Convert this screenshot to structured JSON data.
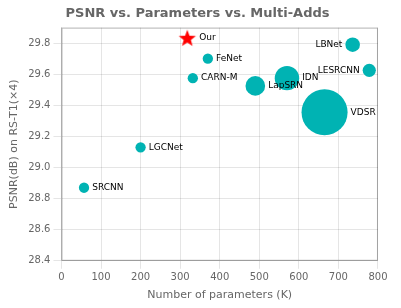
{
  "chart_data": {
    "type": "scatter",
    "title": "PSNR vs. Parameters vs. Multi-Adds",
    "xlabel": "Number of parameters (K)",
    "ylabel": "PSNR(dB) on RS-T1(×4)",
    "xlim": [
      0,
      800
    ],
    "xticks": [
      0,
      100,
      200,
      300,
      400,
      500,
      600,
      700,
      800
    ],
    "ylim": [
      28.4,
      29.9
    ],
    "yticks": [
      28.4,
      28.6,
      28.8,
      {
        "value": 29,
        "label": "29.0"
      },
      29.2,
      29.4,
      29.6,
      29.8
    ],
    "grid": true,
    "series": [
      {
        "color": "#00b3b3",
        "x": [
          57,
          200,
          332,
          370,
          490,
          570,
          665,
          736,
          778
        ],
        "values": [
          28.87,
          29.13,
          29.575,
          29.7,
          29.525,
          29.575,
          29.355,
          29.79,
          29.625
        ],
        "sizes": [
          55,
          55,
          55,
          55,
          200,
          310,
          1100,
          110,
          90
        ],
        "point_labels": [
          "SRCNN",
          "LGCNet",
          "CARN-M",
          "FeNet",
          "LapSRN",
          "IDN",
          "VDSR",
          "LBNet",
          "LESRCNN"
        ]
      },
      {
        "color": "red",
        "marker": "star",
        "x": [
          318
        ],
        "values": [
          29.835
        ],
        "point_labels": [
          "Our"
        ]
      }
    ]
  }
}
